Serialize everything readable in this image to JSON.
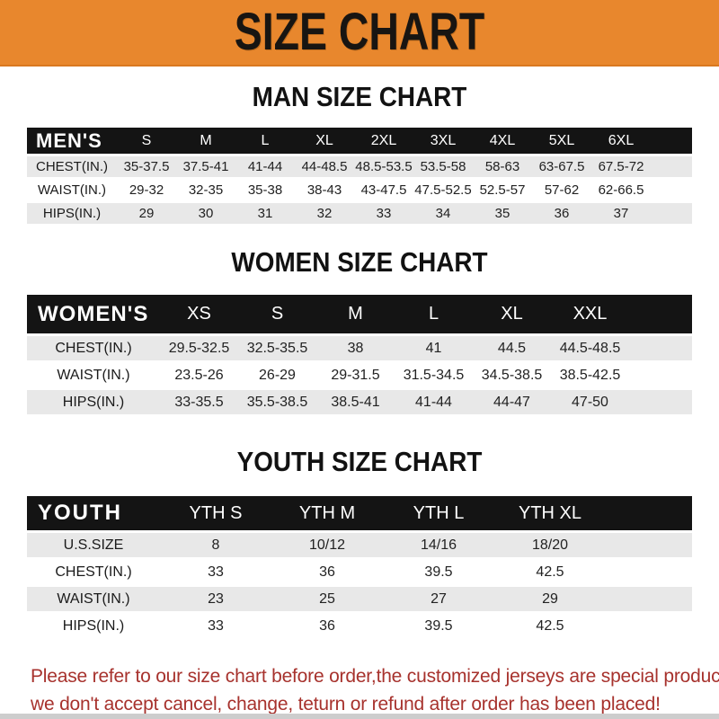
{
  "banner": {
    "title": "SIZE CHART",
    "bg_color": "#E8872D",
    "text_color": "#181512"
  },
  "colors": {
    "header_bar": "#141414",
    "row_gray": "#E8E8E8",
    "footer_red": "#A7322D"
  },
  "sections": [
    {
      "title": "MAN SIZE CHART",
      "table": {
        "header": {
          "label": "MEN'S",
          "sizes": [
            "S",
            "M",
            "L",
            "XL",
            "2XL",
            "3XL",
            "4XL",
            "5XL",
            "6XL"
          ]
        },
        "rows": [
          {
            "label": "CHEST(IN.)",
            "values": [
              "35-37.5",
              "37.5-41",
              "41-44",
              "44-48.5",
              "48.5-53.5",
              "53.5-58",
              "58-63",
              "63-67.5",
              "67.5-72"
            ]
          },
          {
            "label": "WAIST(IN.)",
            "values": [
              "29-32",
              "32-35",
              "35-38",
              "38-43",
              "43-47.5",
              "47.5-52.5",
              "52.5-57",
              "57-62",
              "62-66.5"
            ]
          },
          {
            "label": "HIPS(IN.)",
            "values": [
              "29",
              "30",
              "31",
              "32",
              "33",
              "34",
              "35",
              "36",
              "37"
            ]
          }
        ]
      }
    },
    {
      "title": "WOMEN SIZE CHART",
      "table": {
        "header": {
          "label": "WOMEN'S",
          "sizes": [
            "XS",
            "S",
            "M",
            "L",
            "XL",
            "XXL"
          ]
        },
        "rows": [
          {
            "label": "CHEST(IN.)",
            "values": [
              "29.5-32.5",
              "32.5-35.5",
              "38",
              "41",
              "44.5",
              "44.5-48.5"
            ]
          },
          {
            "label": "WAIST(IN.)",
            "values": [
              "23.5-26",
              "26-29",
              "29-31.5",
              "31.5-34.5",
              "34.5-38.5",
              "38.5-42.5"
            ]
          },
          {
            "label": "HIPS(IN.)",
            "values": [
              "33-35.5",
              "35.5-38.5",
              "38.5-41",
              "41-44",
              "44-47",
              "47-50"
            ]
          }
        ]
      }
    },
    {
      "title": "YOUTH SIZE CHART",
      "table": {
        "header": {
          "label": "YOUTH",
          "sizes": [
            "YTH S",
            "YTH M",
            "YTH L",
            "YTH XL"
          ]
        },
        "rows": [
          {
            "label": "U.S.SIZE",
            "values": [
              "8",
              "10/12",
              "14/16",
              "18/20"
            ]
          },
          {
            "label": "CHEST(IN.)",
            "values": [
              "33",
              "36",
              "39.5",
              "42.5"
            ]
          },
          {
            "label": "WAIST(IN.)",
            "values": [
              "23",
              "25",
              "27",
              "29"
            ]
          },
          {
            "label": "HIPS(IN.)",
            "values": [
              "33",
              "36",
              "39.5",
              "42.5"
            ]
          }
        ]
      }
    }
  ],
  "footer": {
    "line1": "Please refer to our size chart before order,the customized jerseys are special products,",
    "line2": "we don't accept cancel, change, teturn or refund after order has been placed!"
  },
  "chart_data": [
    {
      "type": "table",
      "title": "MAN SIZE CHART",
      "columns": [
        "MEN'S",
        "S",
        "M",
        "L",
        "XL",
        "2XL",
        "3XL",
        "4XL",
        "5XL",
        "6XL"
      ],
      "rows": [
        [
          "CHEST(IN.)",
          "35-37.5",
          "37.5-41",
          "41-44",
          "44-48.5",
          "48.5-53.5",
          "53.5-58",
          "58-63",
          "63-67.5",
          "67.5-72"
        ],
        [
          "WAIST(IN.)",
          "29-32",
          "32-35",
          "35-38",
          "38-43",
          "43-47.5",
          "47.5-52.5",
          "52.5-57",
          "57-62",
          "62-66.5"
        ],
        [
          "HIPS(IN.)",
          "29",
          "30",
          "31",
          "32",
          "33",
          "34",
          "35",
          "36",
          "37"
        ]
      ]
    },
    {
      "type": "table",
      "title": "WOMEN SIZE CHART",
      "columns": [
        "WOMEN'S",
        "XS",
        "S",
        "M",
        "L",
        "XL",
        "XXL"
      ],
      "rows": [
        [
          "CHEST(IN.)",
          "29.5-32.5",
          "32.5-35.5",
          "38",
          "41",
          "44.5",
          "44.5-48.5"
        ],
        [
          "WAIST(IN.)",
          "23.5-26",
          "26-29",
          "29-31.5",
          "31.5-34.5",
          "34.5-38.5",
          "38.5-42.5"
        ],
        [
          "HIPS(IN.)",
          "33-35.5",
          "35.5-38.5",
          "38.5-41",
          "41-44",
          "44-47",
          "47-50"
        ]
      ]
    },
    {
      "type": "table",
      "title": "YOUTH SIZE CHART",
      "columns": [
        "YOUTH",
        "YTH S",
        "YTH M",
        "YTH L",
        "YTH XL"
      ],
      "rows": [
        [
          "U.S.SIZE",
          "8",
          "10/12",
          "14/16",
          "18/20"
        ],
        [
          "CHEST(IN.)",
          "33",
          "36",
          "39.5",
          "42.5"
        ],
        [
          "WAIST(IN.)",
          "23",
          "25",
          "27",
          "29"
        ],
        [
          "HIPS(IN.)",
          "33",
          "36",
          "39.5",
          "42.5"
        ]
      ]
    }
  ]
}
